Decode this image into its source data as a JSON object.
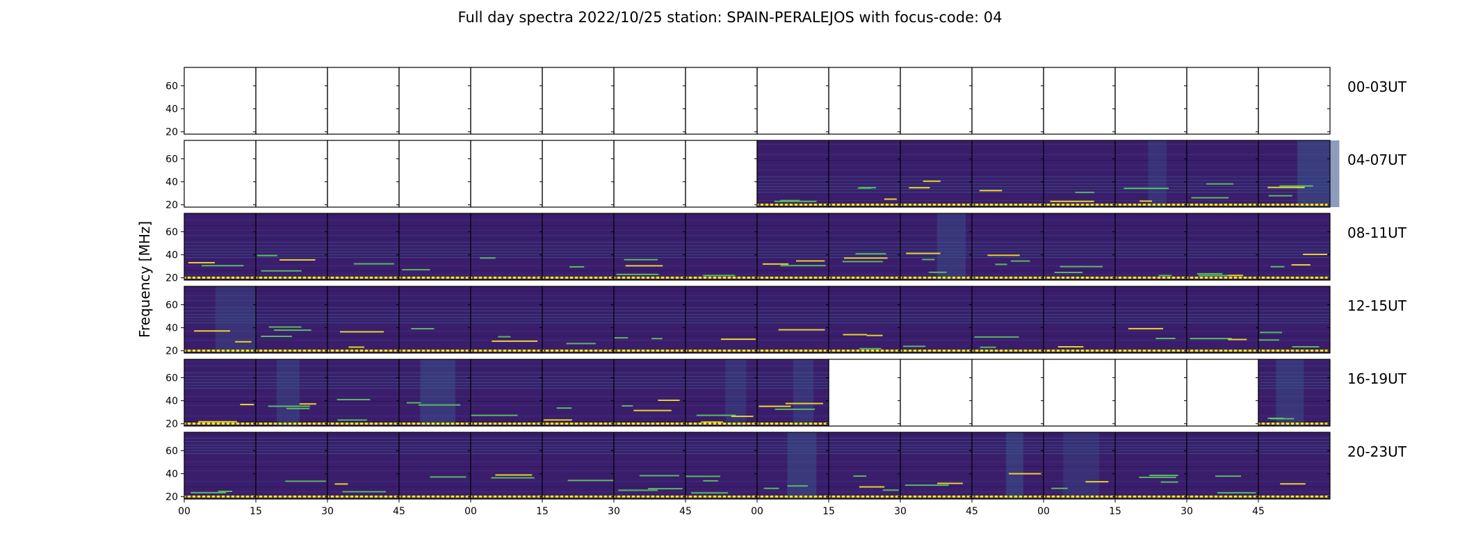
{
  "title": "Full day spectra 2022/10/25 station: SPAIN-PERALEJOS with focus-code: 04",
  "chart_data": {
    "type": "heatmap",
    "title": "Full day spectra 2022/10/25 station: SPAIN-PERALEJOS with focus-code: 04",
    "ylabel": "Frequency [MHz]",
    "ylim": [
      18,
      76
    ],
    "yticks": [
      20,
      40,
      60
    ],
    "xticks": [
      "00",
      "15",
      "30",
      "45",
      "00",
      "15",
      "30",
      "45",
      "00",
      "15",
      "30",
      "45",
      "00",
      "15",
      "30",
      "45"
    ],
    "colormap": [
      "#440154",
      "#3b528b",
      "#21918c",
      "#5ec962",
      "#fde725"
    ],
    "rows": [
      {
        "label": "00-03UT",
        "present": [
          0,
          0,
          0,
          0,
          0,
          0,
          0,
          0,
          0,
          0,
          0,
          0,
          0,
          0,
          0,
          0
        ]
      },
      {
        "label": "04-07UT",
        "present": [
          0,
          0,
          0,
          0,
          0,
          0,
          0,
          0,
          1,
          1,
          1,
          1,
          1,
          1,
          1,
          1
        ]
      },
      {
        "label": "08-11UT",
        "present": [
          1,
          1,
          1,
          1,
          1,
          1,
          1,
          1,
          1,
          1,
          1,
          1,
          1,
          1,
          1,
          1
        ]
      },
      {
        "label": "12-15UT",
        "present": [
          1,
          1,
          1,
          1,
          1,
          1,
          1,
          1,
          1,
          1,
          1,
          1,
          1,
          1,
          1,
          1
        ]
      },
      {
        "label": "16-19UT",
        "present": [
          1,
          1,
          1,
          1,
          1,
          1,
          1,
          1,
          1,
          0,
          0,
          0,
          0,
          0,
          0,
          1
        ]
      },
      {
        "label": "20-23UT",
        "present": [
          1,
          1,
          1,
          1,
          1,
          1,
          1,
          1,
          1,
          1,
          1,
          1,
          1,
          1,
          1,
          1
        ]
      }
    ]
  }
}
